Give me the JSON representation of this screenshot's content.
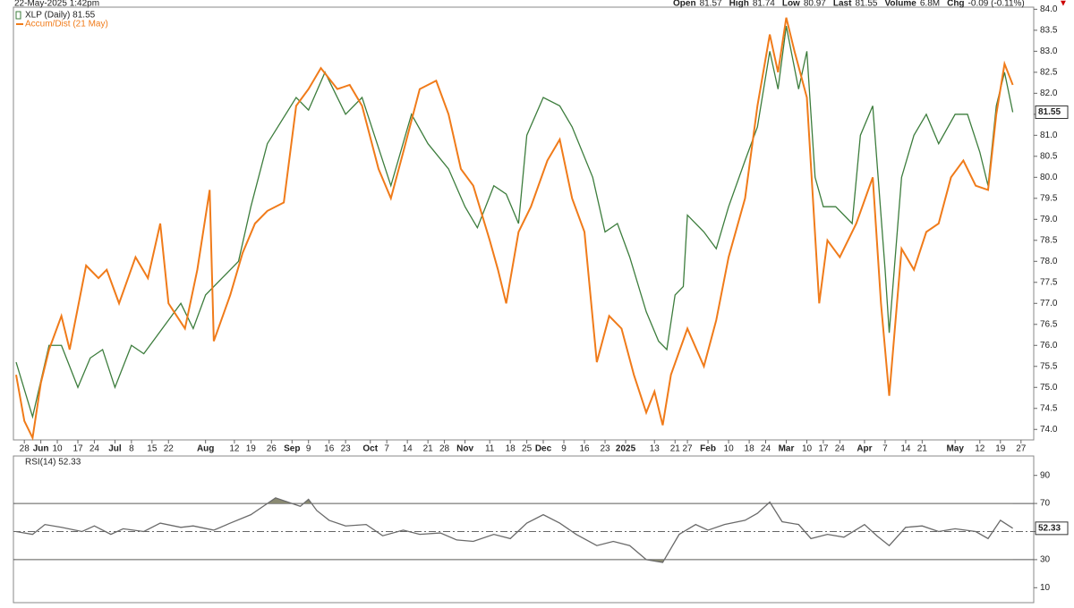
{
  "header": {
    "timestamp": "22-May-2025 1:42pm",
    "quote": [
      {
        "label": "Open",
        "value": "81.57"
      },
      {
        "label": "High",
        "value": "81.74"
      },
      {
        "label": "Low",
        "value": "80.97"
      },
      {
        "label": "Last",
        "value": "81.55"
      },
      {
        "label": "Volume",
        "value": "6.8M"
      },
      {
        "label": "Chg",
        "value": "-0.09 (-0.11%)"
      }
    ]
  },
  "chart_data": [
    {
      "type": "line",
      "title": "XLP (Daily) 81.55",
      "last_label": "81.55",
      "xlim": [
        0,
        246
      ],
      "xticks": [
        {
          "value": 2,
          "label": "28"
        },
        {
          "value": 6,
          "label": "Jun"
        },
        {
          "value": 10,
          "label": "10"
        },
        {
          "value": 15,
          "label": "17"
        },
        {
          "value": 19,
          "label": "24"
        },
        {
          "value": 24,
          "label": "Jul"
        },
        {
          "value": 28,
          "label": "8"
        },
        {
          "value": 33,
          "label": "15"
        },
        {
          "value": 37,
          "label": "22"
        },
        {
          "value": 46,
          "label": "Aug"
        },
        {
          "value": 53,
          "label": "12"
        },
        {
          "value": 57,
          "label": "19"
        },
        {
          "value": 62,
          "label": "26"
        },
        {
          "value": 67,
          "label": "Sep"
        },
        {
          "value": 71,
          "label": "9"
        },
        {
          "value": 76,
          "label": "16"
        },
        {
          "value": 80,
          "label": "23"
        },
        {
          "value": 86,
          "label": "Oct"
        },
        {
          "value": 90,
          "label": "7"
        },
        {
          "value": 95,
          "label": "14"
        },
        {
          "value": 100,
          "label": "21"
        },
        {
          "value": 104,
          "label": "28"
        },
        {
          "value": 109,
          "label": "Nov"
        },
        {
          "value": 115,
          "label": "11"
        },
        {
          "value": 120,
          "label": "18"
        },
        {
          "value": 124,
          "label": "25"
        },
        {
          "value": 128,
          "label": "Dec"
        },
        {
          "value": 133,
          "label": "9"
        },
        {
          "value": 138,
          "label": "16"
        },
        {
          "value": 143,
          "label": "23"
        },
        {
          "value": 148,
          "label": "2025"
        },
        {
          "value": 155,
          "label": "13"
        },
        {
          "value": 160,
          "label": "21"
        },
        {
          "value": 163,
          "label": "27"
        },
        {
          "value": 168,
          "label": "Feb"
        },
        {
          "value": 173,
          "label": "10"
        },
        {
          "value": 178,
          "label": "18"
        },
        {
          "value": 182,
          "label": "24"
        },
        {
          "value": 187,
          "label": "Mar"
        },
        {
          "value": 192,
          "label": "10"
        },
        {
          "value": 196,
          "label": "17"
        },
        {
          "value": 200,
          "label": "24"
        },
        {
          "value": 206,
          "label": "Apr"
        },
        {
          "value": 211,
          "label": "7"
        },
        {
          "value": 216,
          "label": "14"
        },
        {
          "value": 220,
          "label": "21"
        },
        {
          "value": 228,
          "label": "May"
        },
        {
          "value": 234,
          "label": "12"
        },
        {
          "value": 239,
          "label": "19"
        },
        {
          "value": 244,
          "label": "27"
        }
      ],
      "ylim": [
        73.75,
        84.05
      ],
      "yticks": [
        {
          "value": 74,
          "label": "74.0"
        },
        {
          "value": 74.5,
          "label": "74.5"
        },
        {
          "value": 75,
          "label": "75.0"
        },
        {
          "value": 75.5,
          "label": "75.5"
        },
        {
          "value": 76,
          "label": "76.0"
        },
        {
          "value": 76.5,
          "label": "76.5"
        },
        {
          "value": 77,
          "label": "77.0"
        },
        {
          "value": 77.5,
          "label": "77.5"
        },
        {
          "value": 78,
          "label": "78.0"
        },
        {
          "value": 78.5,
          "label": "78.5"
        },
        {
          "value": 79,
          "label": "79.0"
        },
        {
          "value": 79.5,
          "label": "79.5"
        },
        {
          "value": 80,
          "label": "80.0"
        },
        {
          "value": 80.5,
          "label": "80.5"
        },
        {
          "value": 81,
          "label": "81.0"
        },
        {
          "value": 81.5,
          "label": "81.5"
        },
        {
          "value": 82,
          "label": "82.0"
        },
        {
          "value": 82.5,
          "label": "82.5"
        },
        {
          "value": 83,
          "label": "83.0"
        },
        {
          "value": 83.5,
          "label": "83.5"
        },
        {
          "value": 84,
          "label": "84.0"
        }
      ],
      "series": [
        {
          "name": "XLP (Daily) 81.55",
          "color": "#3d7d3d",
          "x": [
            0,
            4,
            8,
            11,
            15,
            18,
            21,
            24,
            28,
            31,
            34,
            40,
            43,
            46,
            50,
            54,
            57,
            61,
            68,
            71,
            75,
            80,
            84,
            87,
            91,
            96,
            100,
            105,
            109,
            112,
            116,
            119,
            122,
            124,
            128,
            132,
            135,
            140,
            143,
            146,
            149,
            153,
            156,
            158,
            160,
            162,
            163,
            167,
            170,
            173,
            177,
            180,
            183,
            185,
            187,
            190,
            192,
            194,
            196,
            199,
            203,
            205,
            208,
            211,
            212,
            215,
            218,
            221,
            224,
            228,
            231,
            234,
            236,
            238,
            240,
            242
          ],
          "values": [
            75.6,
            74.3,
            76.0,
            76.0,
            75.0,
            75.7,
            75.9,
            75.0,
            76.0,
            75.8,
            76.2,
            77.0,
            76.4,
            77.2,
            77.6,
            78.0,
            79.3,
            80.8,
            81.9,
            81.6,
            82.5,
            81.5,
            81.9,
            81.0,
            79.8,
            81.5,
            80.8,
            80.2,
            79.3,
            78.8,
            79.8,
            79.6,
            78.9,
            81.0,
            81.9,
            81.7,
            81.2,
            80.0,
            78.7,
            78.9,
            78.1,
            76.8,
            76.1,
            75.9,
            77.2,
            77.4,
            79.1,
            78.7,
            78.3,
            79.3,
            80.4,
            81.2,
            83.0,
            82.1,
            83.6,
            82.1,
            83.0,
            80.0,
            79.3,
            79.3,
            78.9,
            81.0,
            81.7,
            77.8,
            76.3,
            80.0,
            81.0,
            81.5,
            80.8,
            81.5,
            81.5,
            80.6,
            79.8,
            81.7,
            82.5,
            81.55
          ]
        },
        {
          "name": "Accum/Dist (21 May)",
          "color": "#f07b1a",
          "x": [
            0,
            2,
            4,
            6,
            8,
            11,
            13,
            17,
            20,
            22,
            25,
            29,
            32,
            35,
            37,
            41,
            44,
            47,
            48,
            52,
            55,
            58,
            61,
            65,
            68,
            71,
            74,
            78,
            81,
            84,
            88,
            91,
            94,
            98,
            102,
            105,
            108,
            111,
            115,
            117,
            119,
            122,
            125,
            129,
            132,
            135,
            138,
            141,
            144,
            147,
            150,
            153,
            155,
            157,
            159,
            163,
            167,
            170,
            173,
            177,
            180,
            183,
            185,
            187,
            189,
            192,
            195,
            197,
            200,
            204,
            208,
            210,
            212,
            215,
            218,
            221,
            224,
            227,
            230,
            233,
            236,
            238,
            240,
            242
          ],
          "values": [
            75.3,
            74.2,
            73.8,
            75.1,
            75.9,
            76.7,
            75.9,
            77.9,
            77.6,
            77.8,
            77.0,
            78.1,
            77.6,
            78.9,
            77.0,
            76.4,
            77.8,
            79.7,
            76.1,
            77.2,
            78.2,
            78.9,
            79.2,
            79.4,
            81.7,
            82.1,
            82.6,
            82.1,
            82.2,
            81.7,
            80.2,
            79.5,
            80.6,
            82.1,
            82.3,
            81.5,
            80.2,
            79.8,
            78.5,
            77.8,
            77.0,
            78.7,
            79.3,
            80.4,
            80.9,
            79.5,
            78.7,
            75.6,
            76.7,
            76.4,
            75.3,
            74.4,
            74.9,
            74.1,
            75.3,
            76.4,
            75.5,
            76.6,
            78.1,
            79.5,
            81.7,
            83.4,
            82.5,
            83.8,
            83.0,
            81.9,
            77.0,
            78.5,
            78.1,
            78.9,
            80.0,
            77.0,
            74.8,
            78.3,
            77.8,
            78.7,
            78.9,
            80.0,
            80.4,
            79.8,
            79.7,
            81.5,
            82.7,
            82.2
          ]
        }
      ]
    },
    {
      "type": "line",
      "title": "RSI(14) 52.33",
      "last_label": "52.33",
      "xlim": [
        0,
        246
      ],
      "ylim": [
        0,
        100
      ],
      "yticks": [
        10,
        30,
        50,
        70,
        90
      ],
      "overbought": 70,
      "oversold": 30,
      "midline": 50,
      "series": [
        {
          "name": "RSI(14) 52.33",
          "color": "#6a6a6a",
          "fill": "#8a8a72",
          "x": [
            0,
            4,
            7,
            11,
            16,
            19,
            23,
            26,
            31,
            35,
            40,
            43,
            48,
            52,
            57,
            61,
            63,
            65,
            69,
            71,
            73,
            76,
            80,
            85,
            89,
            94,
            98,
            103,
            107,
            111,
            116,
            120,
            124,
            128,
            132,
            136,
            141,
            145,
            149,
            153,
            157,
            161,
            165,
            168,
            172,
            177,
            180,
            183,
            186,
            190,
            193,
            197,
            201,
            206,
            209,
            212,
            216,
            220,
            224,
            228,
            233,
            236,
            239,
            242
          ],
          "values": [
            50,
            48,
            55,
            53,
            50,
            54,
            48,
            52,
            50,
            56,
            53,
            54,
            51,
            56,
            62,
            70,
            74,
            72,
            68,
            73,
            65,
            58,
            54,
            55,
            47,
            51,
            48,
            49,
            44,
            43,
            48,
            45,
            56,
            62,
            56,
            48,
            40,
            43,
            40,
            30,
            28,
            48,
            55,
            51,
            55,
            58,
            63,
            71,
            57,
            55,
            45,
            48,
            46,
            55,
            47,
            40,
            53,
            54,
            50,
            52,
            50,
            45,
            58,
            52.33
          ]
        }
      ]
    }
  ]
}
